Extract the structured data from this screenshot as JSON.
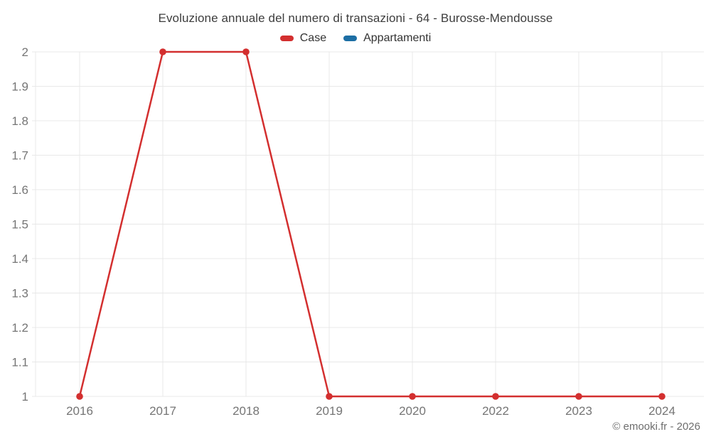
{
  "title": "Evoluzione annuale del numero di transazioni - 64 - Burosse-Mendousse",
  "legend": [
    {
      "label": "Case",
      "color": "#d32f2f"
    },
    {
      "label": "Appartamenti",
      "color": "#1c6ea4"
    }
  ],
  "footer": {
    "copyright": "© emooki.fr - 2026"
  },
  "colors": {
    "grid": "#e8e8e8",
    "axis_label": "#757575",
    "title_text": "#3d3d3d"
  },
  "chart_data": {
    "type": "line",
    "title": "Evoluzione annuale del numero di transazioni - 64 - Burosse-Mendousse",
    "categories": [
      "2016",
      "2017",
      "2018",
      "2019",
      "2020",
      "2022",
      "2023",
      "2024"
    ],
    "series": [
      {
        "name": "Case",
        "color": "#d32f2f",
        "values": [
          1,
          2,
          2,
          1,
          1,
          1,
          1,
          1
        ]
      },
      {
        "name": "Appartamenti",
        "color": "#1c6ea4",
        "values": []
      }
    ],
    "xlabel": "",
    "ylabel": "",
    "ylim": [
      1,
      2
    ],
    "yticks": [
      1,
      1.1,
      1.2,
      1.3,
      1.4,
      1.5,
      1.6,
      1.7,
      1.8,
      1.9,
      2
    ],
    "ytick_labels": [
      "1",
      "1.1",
      "1.2",
      "1.3",
      "1.4",
      "1.5",
      "1.6",
      "1.7",
      "1.8",
      "1.9",
      "2"
    ],
    "grid": true,
    "legend_position": "top",
    "marker": "circle"
  }
}
